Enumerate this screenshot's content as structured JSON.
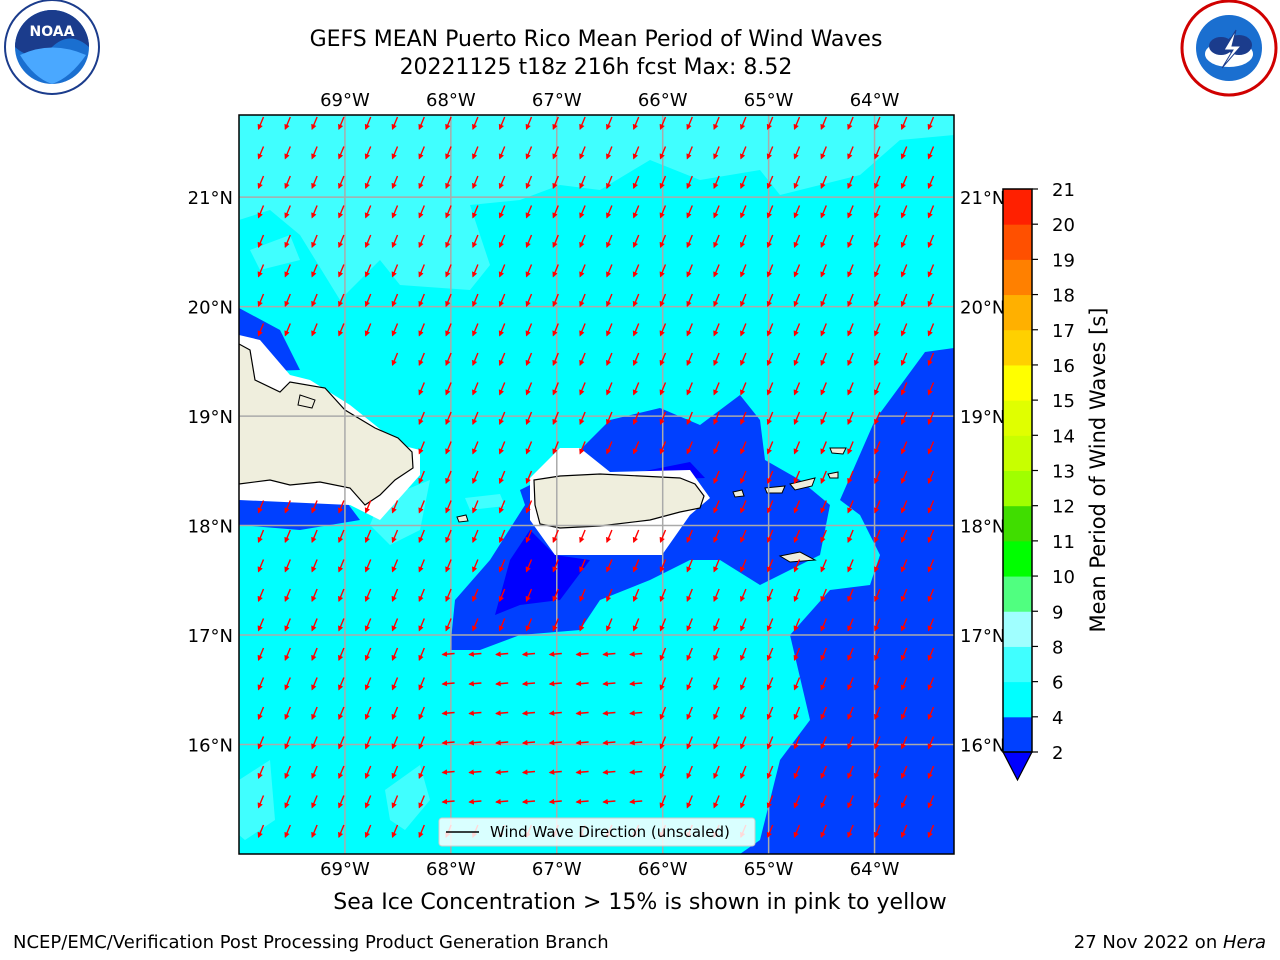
{
  "title": {
    "line1": "GEFS MEAN Puerto Rico Mean Period of Wind Waves",
    "line2": "20221125 t18z 216h fcst   Max: 8.52"
  },
  "logos": {
    "left": "noa-logo",
    "right": "national-weather-service-logo"
  },
  "map": {
    "lon_labels": [
      "69°W",
      "68°W",
      "67°W",
      "66°W",
      "65°W",
      "64°W"
    ],
    "lat_labels": [
      "21°N",
      "20°N",
      "19°N",
      "18°N",
      "17°N",
      "16°N"
    ],
    "extent": {
      "lon": [
        -70.0,
        -63.25
      ],
      "lat": [
        15.0,
        21.75
      ]
    },
    "legend_label": "Wind Wave Direction (unscaled)",
    "arrow_color": "#ff0000",
    "land_color": "#efeedd"
  },
  "colorbar": {
    "label": "Mean Period of Wind Waves [s]",
    "ticks": [
      "2",
      "4",
      "6",
      "8",
      "9",
      "10",
      "11",
      "12",
      "13",
      "14",
      "15",
      "16",
      "17",
      "18",
      "19",
      "20",
      "21"
    ],
    "colors": [
      "#0040ff",
      "#00ffff",
      "#40ffff",
      "#a0ffff",
      "#50ff80",
      "#00ff00",
      "#40dd00",
      "#a0ff00",
      "#c8ff00",
      "#e0ff00",
      "#ffff00",
      "#ffd000",
      "#ffb000",
      "#ff8000",
      "#ff5000",
      "#ff2000"
    ],
    "under_color": "#0000ff"
  },
  "chart_data": {
    "type": "heatmap",
    "title": "GEFS MEAN Puerto Rico Mean Period of Wind Waves",
    "max": 8.52,
    "value_range": [
      2,
      21
    ],
    "units": "s"
  },
  "footer": {
    "sea_ice": "Sea Ice Concentration > 15% is shown in pink to yellow",
    "credit": "NCEP/EMC/Verification Post Processing Product Generation Branch",
    "date_prefix": "27 Nov 2022 on ",
    "date_host": "Hera"
  }
}
